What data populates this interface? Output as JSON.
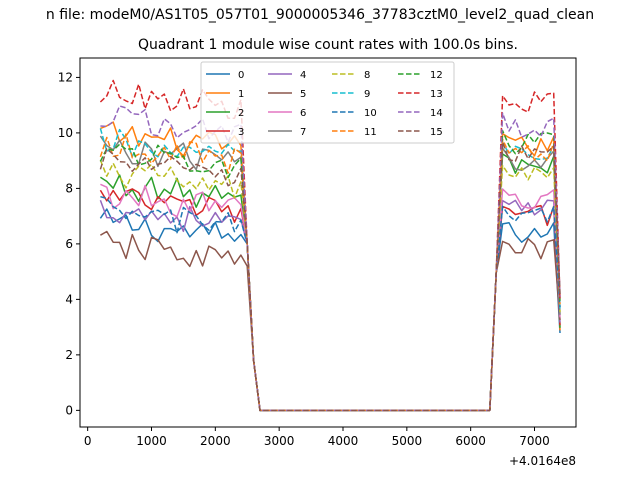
{
  "chart_data": {
    "type": "line",
    "suptitle": "n file: modeM0/AS1T05_057T01_9000005346_37783cztM0_level2_quad_clean",
    "title": "Quadrant 1 module wise count rates with 100.0s bins.",
    "xlabel": "",
    "ylabel": "",
    "xlim": [
      -120,
      7650
    ],
    "ylim": [
      -0.6,
      12.7
    ],
    "x_offset_label": "+4.0164e8",
    "x_ticks": [
      0,
      1000,
      2000,
      3000,
      4000,
      5000,
      6000,
      7000
    ],
    "y_ticks": [
      0,
      2,
      4,
      6,
      8,
      10,
      12
    ],
    "grid": false,
    "legend": {
      "placement": "top-center",
      "columns": 4
    },
    "series": [
      {
        "name": "0",
        "color": "#1f77b4",
        "dash": "solid",
        "level": 6.8,
        "end_level": 6.4
      },
      {
        "name": "1",
        "color": "#ff7f0e",
        "dash": "solid",
        "level": 10.0,
        "end_level": 9.5
      },
      {
        "name": "2",
        "color": "#2ca02c",
        "dash": "solid",
        "level": 8.2,
        "end_level": 8.8
      },
      {
        "name": "3",
        "color": "#d62728",
        "dash": "solid",
        "level": 7.7,
        "end_level": 7.0
      },
      {
        "name": "4",
        "color": "#9467bd",
        "dash": "solid",
        "level": 7.3,
        "end_level": 7.2
      },
      {
        "name": "5",
        "color": "#8c564b",
        "dash": "solid",
        "level": 6.0,
        "end_level": 5.8
      },
      {
        "name": "6",
        "color": "#e377c2",
        "dash": "solid",
        "level": 7.8,
        "end_level": 7.6
      },
      {
        "name": "7",
        "color": "#7f7f7f",
        "dash": "solid",
        "level": 9.5,
        "end_level": 9.0
      },
      {
        "name": "8",
        "color": "#bcbd22",
        "dash": "dashed",
        "level": 8.6,
        "end_level": 8.4
      },
      {
        "name": "9",
        "color": "#17becf",
        "dash": "dashed",
        "level": 9.7,
        "end_level": 9.2
      },
      {
        "name": "10",
        "color": "#1f77b4",
        "dash": "dashed",
        "level": 7.2,
        "end_level": 7.0
      },
      {
        "name": "11",
        "color": "#ff7f0e",
        "dash": "dashed",
        "level": 9.6,
        "end_level": 9.3
      },
      {
        "name": "12",
        "color": "#2ca02c",
        "dash": "dashed",
        "level": 9.4,
        "end_level": 9.6
      },
      {
        "name": "13",
        "color": "#d62728",
        "dash": "dashed",
        "level": 11.5,
        "end_level": 11.1
      },
      {
        "name": "14",
        "color": "#9467bd",
        "dash": "dashed",
        "level": 10.6,
        "end_level": 10.2
      },
      {
        "name": "15",
        "color": "#8c564b",
        "dash": "dashed",
        "level": 9.0,
        "end_level": 9.2
      }
    ],
    "x_start": 200,
    "x_step": 100,
    "first_segment_end": 2400,
    "drop_points": [
      [
        2500,
        6.0
      ],
      [
        2600,
        1.8
      ],
      [
        2700,
        0
      ]
    ],
    "gap_end": 6300,
    "rise_points": [
      [
        6400,
        5.5
      ],
      [
        6500,
        10.8
      ]
    ],
    "second_segment_end": 7300,
    "final_point": [
      7400,
      3.5
    ]
  }
}
